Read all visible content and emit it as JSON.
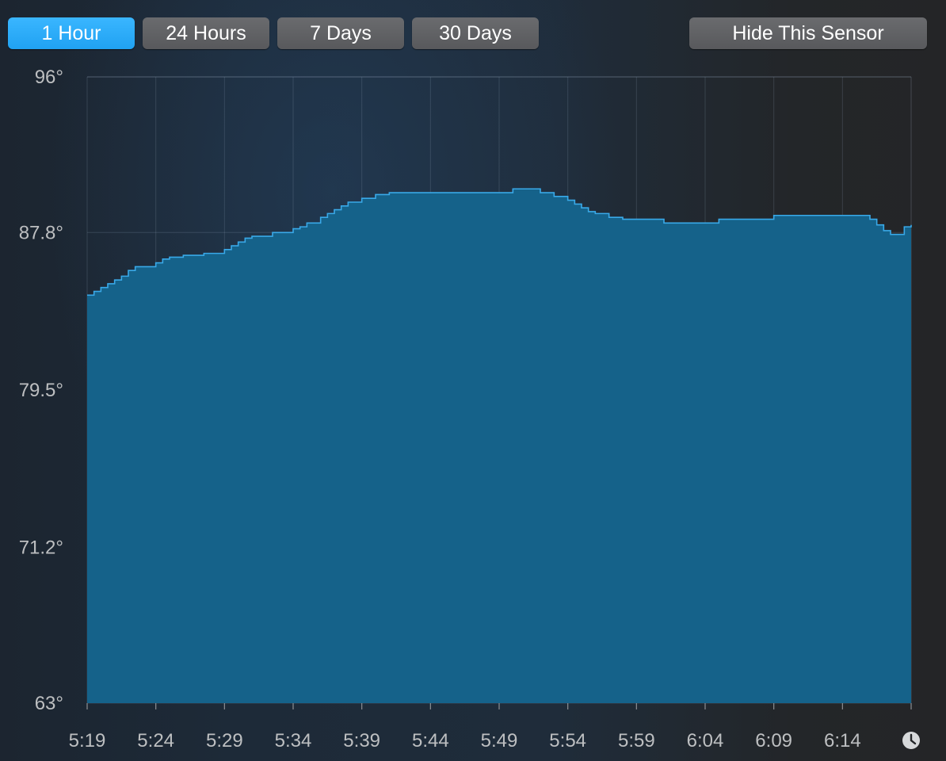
{
  "toolbar": {
    "range_buttons": [
      {
        "label": "1 Hour",
        "active": true
      },
      {
        "label": "24 Hours",
        "active": false
      },
      {
        "label": "7 Days",
        "active": false
      },
      {
        "label": "30 Days",
        "active": false
      }
    ],
    "hide_label": "Hide This Sensor",
    "active_color": "#27a8f7"
  },
  "timeline_icon": "clock-icon",
  "chart_data": {
    "type": "area",
    "fill_color": "#15628a",
    "line_color": "#39a9e8",
    "y_ticks": [
      "96°",
      "87.8°",
      "79.5°",
      "71.2°",
      "63°"
    ],
    "y_tick_values": [
      96,
      87.8,
      79.5,
      71.2,
      63
    ],
    "ylim": [
      63,
      96
    ],
    "x_ticks": [
      "5:19",
      "5:24",
      "5:29",
      "5:34",
      "5:39",
      "5:44",
      "5:49",
      "5:54",
      "5:59",
      "6:04",
      "6:09",
      "6:14"
    ],
    "xlim": [
      "5:19",
      "6:19"
    ],
    "grid": true,
    "series": [
      {
        "x": [
          "5:19",
          "5:19.5",
          "5:20",
          "5:20.5",
          "5:21",
          "5:21.5",
          "5:22",
          "5:22.5",
          "5:23",
          "5:24",
          "5:24.5",
          "5:25",
          "5:26",
          "5:27.5",
          "5:29",
          "5:29.5",
          "5:30",
          "5:30.5",
          "5:31",
          "5:32.5",
          "5:34",
          "5:34.5",
          "5:35",
          "5:36",
          "5:36.5",
          "5:37",
          "5:37.5",
          "5:38",
          "5:39",
          "5:40",
          "5:41",
          "5:42",
          "5:43",
          "5:44",
          "5:45",
          "5:46",
          "5:47",
          "5:48",
          "5:49",
          "5:50",
          "5:51",
          "5:52",
          "5:53",
          "5:54",
          "5:54.5",
          "5:55",
          "5:55.5",
          "5:56",
          "5:57",
          "5:58",
          "5:59",
          "6:00",
          "6:01",
          "6:02",
          "6:03",
          "6:04",
          "6:05",
          "6:06",
          "6:07",
          "6:08",
          "6:09",
          "6:10",
          "6:11",
          "6:12",
          "6:13",
          "6:14",
          "6:15",
          "6:16",
          "6:16.5",
          "6:17",
          "6:17.5",
          "6:18",
          "6:18.5",
          "6:19"
        ],
        "y": [
          84.5,
          84.7,
          84.9,
          85.1,
          85.3,
          85.5,
          85.8,
          86.0,
          86.0,
          86.2,
          86.4,
          86.5,
          86.6,
          86.7,
          86.9,
          87.1,
          87.3,
          87.5,
          87.6,
          87.8,
          88.0,
          88.1,
          88.3,
          88.6,
          88.8,
          89.0,
          89.2,
          89.4,
          89.6,
          89.8,
          89.9,
          89.9,
          89.9,
          89.9,
          89.9,
          89.9,
          89.9,
          89.9,
          89.9,
          90.1,
          90.1,
          89.9,
          89.7,
          89.5,
          89.3,
          89.1,
          88.9,
          88.8,
          88.6,
          88.5,
          88.5,
          88.5,
          88.3,
          88.3,
          88.3,
          88.3,
          88.5,
          88.5,
          88.5,
          88.5,
          88.7,
          88.7,
          88.7,
          88.7,
          88.7,
          88.7,
          88.7,
          88.5,
          88.2,
          87.9,
          87.7,
          87.7,
          88.1,
          88.2
        ]
      }
    ]
  }
}
